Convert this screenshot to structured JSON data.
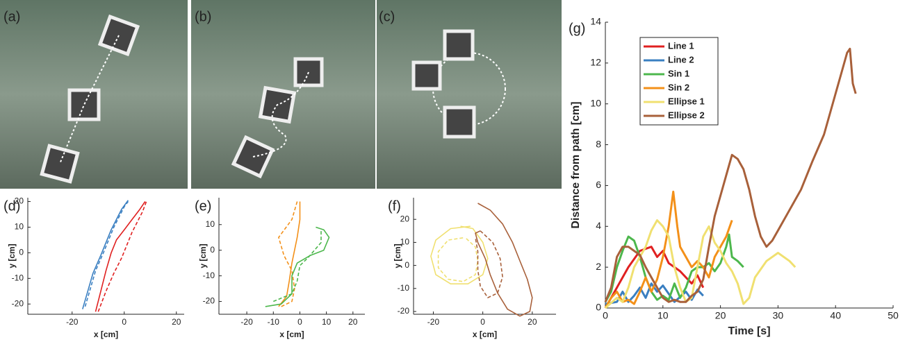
{
  "photos": [
    {
      "label": "(a)"
    },
    {
      "label": "(b)"
    },
    {
      "label": "(c)"
    }
  ],
  "chart_data": [
    {
      "type": "line",
      "panel_label": "(d)",
      "xlabel": "x [cm]",
      "ylabel": "y [cm]",
      "xlim": [
        -37,
        23
      ],
      "ylim": [
        -24,
        21.5
      ],
      "xticks": [
        -20,
        0,
        20
      ],
      "yticks": [
        -20,
        -10,
        0,
        10,
        20
      ],
      "series": [
        {
          "color": "#3a7fc1",
          "dashed": false,
          "x": [
            -16,
            -14,
            -12,
            -9,
            -7,
            -5,
            -3,
            -1,
            1.5
          ],
          "values": [
            -22,
            -15,
            -8,
            -1,
            4,
            9,
            13,
            17,
            20.5
          ]
        },
        {
          "color": "#3a7fc1",
          "dashed": true,
          "x": [
            -15,
            -13,
            -11,
            -8,
            -6,
            -4,
            -2,
            0,
            1.5
          ],
          "values": [
            -21,
            -14,
            -7,
            0,
            5,
            10,
            14,
            18,
            20
          ]
        },
        {
          "color": "#e02020",
          "dashed": false,
          "x": [
            -11,
            -9,
            -7,
            -5,
            -3,
            0,
            3,
            6,
            8
          ],
          "values": [
            -23,
            -15,
            -7,
            0,
            5,
            9,
            13,
            17,
            20
          ]
        },
        {
          "color": "#e02020",
          "dashed": true,
          "x": [
            -10,
            -7,
            -4,
            -1,
            1,
            3,
            5,
            7,
            8.5
          ],
          "values": [
            -23,
            -15,
            -8,
            -2,
            3,
            8,
            12,
            16,
            20
          ]
        }
      ]
    },
    {
      "type": "line",
      "panel_label": "(e)",
      "xlabel": "x [cm]",
      "ylabel": "y [cm]",
      "xlim": [
        -30.5,
        24.5
      ],
      "ylim": [
        -25,
        20.5
      ],
      "xticks": [
        -20,
        -10,
        0,
        10,
        20
      ],
      "yticks": [
        -20,
        -10,
        0,
        10
      ],
      "series": [
        {
          "color": "#f39019",
          "dashed": false,
          "x": [
            0,
            0,
            -1,
            -2,
            -3,
            -4,
            -5,
            -8
          ],
          "values": [
            19,
            12,
            5,
            0,
            -5,
            -12,
            -18,
            -22
          ]
        },
        {
          "color": "#f39019",
          "dashed": true,
          "x": [
            -1,
            -3,
            -8,
            -6,
            -3,
            -2,
            -3,
            -7
          ],
          "values": [
            19,
            12,
            5,
            -2,
            -8,
            -15,
            -20,
            -22
          ]
        },
        {
          "color": "#4cb74c",
          "dashed": false,
          "x": [
            -13,
            -7,
            -3,
            -3,
            -1,
            4,
            9,
            11,
            9,
            6
          ],
          "values": [
            -22,
            -21,
            -17,
            -10,
            -5,
            -2,
            0,
            5,
            8,
            9
          ]
        },
        {
          "color": "#4cb74c",
          "dashed": true,
          "x": [
            -10,
            -3,
            -1,
            0,
            3,
            8,
            8
          ],
          "values": [
            -20,
            -17,
            -12,
            -6,
            -3,
            3,
            8
          ]
        }
      ]
    },
    {
      "type": "line",
      "panel_label": "(f)",
      "xlabel": "x [cm]",
      "ylabel": "y [cm]",
      "xlim": [
        -28,
        29.6
      ],
      "ylim": [
        -21.2,
        29.4
      ],
      "xticks": [
        -20,
        0,
        20
      ],
      "yticks": [
        -20,
        -10,
        0,
        10,
        20
      ],
      "series": [
        {
          "color": "#f0e070",
          "dashed": false,
          "x": [
            -5,
            -13,
            -19,
            -21,
            -19,
            -13,
            -6,
            0,
            2,
            0,
            -4,
            -9
          ],
          "values": [
            17,
            16,
            11,
            4,
            -4,
            -8,
            -8,
            -4,
            3,
            10,
            16,
            17
          ]
        },
        {
          "color": "#f0e070",
          "dashed": true,
          "x": [
            -8,
            -14,
            -18,
            -18,
            -14,
            -8,
            -3,
            -2,
            -3,
            -7
          ],
          "values": [
            12,
            11,
            6,
            -1,
            -6,
            -7,
            -4,
            2,
            8,
            12
          ]
        },
        {
          "color": "#a8603a",
          "dashed": false,
          "x": [
            -2,
            3,
            8,
            12,
            15,
            18,
            20,
            19,
            15,
            10,
            6,
            3,
            1,
            -2,
            -3,
            -1
          ],
          "values": [
            27,
            24,
            18,
            10,
            2,
            -6,
            -14,
            -20,
            -22,
            -19,
            -12,
            -4,
            3,
            10,
            14,
            15
          ]
        },
        {
          "color": "#a8603a",
          "dashed": true,
          "x": [
            -1,
            4,
            7,
            8,
            6,
            2,
            -1,
            -2,
            -2,
            -3
          ],
          "values": [
            15,
            10,
            3,
            -5,
            -12,
            -14,
            -9,
            -2,
            6,
            12
          ]
        }
      ]
    },
    {
      "type": "line",
      "panel_label": "(g)",
      "xlabel": "Time [s]",
      "ylabel": "Distance from path [cm]",
      "xlim": [
        0,
        50
      ],
      "ylim": [
        0,
        14
      ],
      "xticks": [
        0,
        10,
        20,
        30,
        40,
        50
      ],
      "yticks": [
        0,
        2,
        4,
        6,
        8,
        10,
        12,
        14
      ],
      "legend": "upper left",
      "series": [
        {
          "name": "Line 1",
          "color": "#e02020",
          "x": [
            0,
            2,
            4,
            6,
            8,
            9,
            10,
            11,
            12,
            13,
            14,
            15,
            16,
            17
          ],
          "values": [
            0,
            1,
            2,
            2.8,
            3,
            2.5,
            2.8,
            2.2,
            2,
            1.8,
            1.5,
            1.2,
            1.6,
            1.0
          ]
        },
        {
          "name": "Line 2",
          "color": "#3a7fc1",
          "x": [
            0,
            2,
            3,
            4,
            5,
            6,
            7,
            8,
            9,
            10,
            12,
            14,
            15,
            16,
            17
          ],
          "values": [
            0.2,
            0.3,
            0.8,
            0.3,
            0.6,
            1.0,
            0.5,
            1.2,
            0.8,
            1.1,
            0.3,
            0.8,
            0.4,
            0.9,
            0.6
          ]
        },
        {
          "name": "Sin 1",
          "color": "#4cb74c",
          "x": [
            0,
            1,
            2,
            3,
            4,
            5,
            6,
            7,
            8,
            9,
            10,
            11,
            12,
            13,
            14,
            15,
            16,
            17,
            18,
            19,
            20,
            21,
            21.5,
            22,
            23,
            24
          ],
          "values": [
            0.3,
            0.8,
            2,
            2.8,
            3.5,
            3.3,
            2.5,
            1.5,
            0.8,
            0.4,
            0.6,
            0.4,
            1.2,
            0.5,
            1.0,
            1.8,
            2,
            2,
            2.2,
            1.8,
            2.2,
            3,
            3.6,
            2.5,
            2.3,
            2
          ]
        },
        {
          "name": "Sin 2",
          "color": "#f39019",
          "x": [
            0,
            1,
            2,
            3,
            4,
            5,
            6,
            7,
            8,
            9,
            10,
            11,
            11.8,
            12.5,
            13,
            14,
            15,
            16,
            17,
            18,
            19,
            20,
            21,
            22
          ],
          "values": [
            0,
            0.5,
            0.8,
            0.3,
            0.4,
            0.2,
            0.8,
            1.5,
            0.8,
            1.4,
            2.5,
            4,
            5.7,
            4,
            3,
            2.5,
            2,
            2.3,
            2,
            1.5,
            2.5,
            3,
            3.5,
            4.3
          ]
        },
        {
          "name": "Ellipse 1",
          "color": "#f0e070",
          "x": [
            0,
            2,
            3,
            4,
            5,
            6,
            7,
            8,
            9,
            10,
            11,
            12,
            13,
            14,
            15,
            16,
            17,
            18,
            19,
            20,
            21,
            22,
            23,
            24,
            25,
            26,
            28,
            30,
            32,
            33
          ],
          "values": [
            0,
            0.5,
            0.3,
            1,
            2,
            2.5,
            3,
            3.8,
            4.3,
            4,
            3.5,
            2,
            1,
            0.3,
            0.5,
            2,
            3.5,
            4,
            3.2,
            2.8,
            2.2,
            1.8,
            1.2,
            0.2,
            0.5,
            1.5,
            2.3,
            2.7,
            2.3,
            2
          ]
        },
        {
          "name": "Ellipse 2",
          "color": "#a8603a",
          "x": [
            0,
            1,
            2,
            3,
            4,
            5,
            6,
            7,
            8,
            9,
            10,
            11,
            12,
            13,
            14,
            15,
            16,
            17,
            18,
            19,
            20,
            21,
            22,
            23,
            24,
            25,
            26,
            27,
            28,
            29,
            30,
            32,
            34,
            36,
            38,
            40,
            41,
            42,
            42.5,
            43,
            43.5
          ],
          "values": [
            0.3,
            1,
            2.5,
            3,
            3,
            2.8,
            2.6,
            2,
            1.5,
            1,
            0.5,
            0.3,
            0.4,
            0.3,
            0.3,
            0.6,
            0.8,
            1.4,
            3,
            4.5,
            5.5,
            6.5,
            7.5,
            7.3,
            6.8,
            5.8,
            4.5,
            3.5,
            3,
            3.3,
            3.8,
            4.8,
            5.8,
            7.2,
            8.5,
            10.5,
            11.5,
            12.5,
            12.7,
            11,
            10.5
          ]
        }
      ]
    }
  ]
}
